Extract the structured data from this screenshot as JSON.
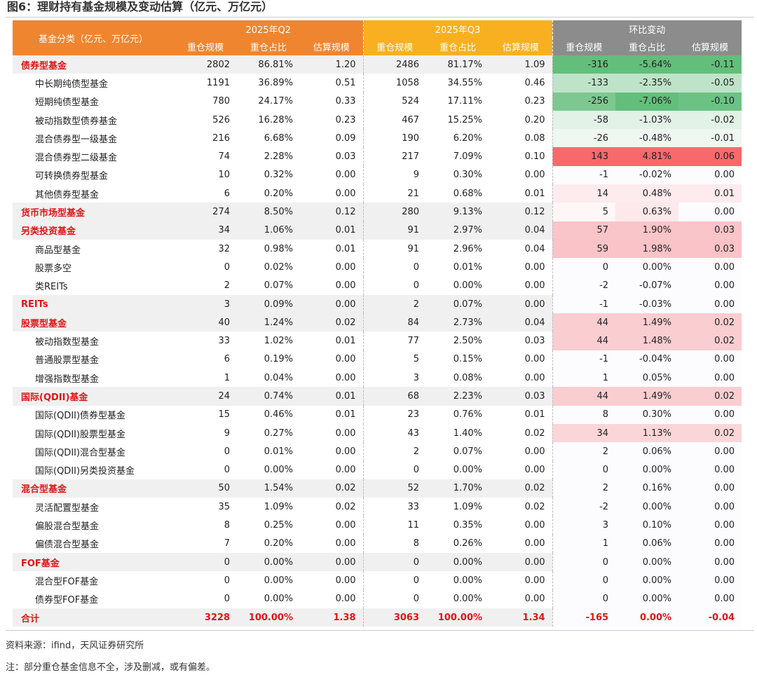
{
  "title": "图6：理财持有基金规模及变动估算（亿元、万亿元）",
  "header": {
    "category": "基金分类（亿元、万亿元）",
    "q2": "2025年Q2",
    "q3": "2025年Q3",
    "change": "环比变动",
    "cols": [
      "重仓规模",
      "重仓占比",
      "估算规模",
      "重仓规模",
      "重仓占比",
      "估算规模",
      "重仓规模",
      "重仓占比",
      "估算规模"
    ]
  },
  "rows": [
    {
      "name": "债券型基金",
      "type": "cat",
      "q2": [
        "2802",
        "86.81%",
        "1.20"
      ],
      "q3": [
        "2486",
        "81.17%",
        "1.09"
      ],
      "chg": [
        "-316",
        "-5.64%",
        "-0.11"
      ],
      "colors": [
        "#63be7b",
        "#63be7b",
        "#63be7b"
      ]
    },
    {
      "name": "中长期纯债型基金",
      "type": "sub",
      "q2": [
        "1191",
        "36.89%",
        "0.51"
      ],
      "q3": [
        "1058",
        "34.55%",
        "0.46"
      ],
      "chg": [
        "-133",
        "-2.35%",
        "-0.05"
      ],
      "colors": [
        "#bfe3c8",
        "#bfe3c8",
        "#bfe3c8"
      ]
    },
    {
      "name": "短期纯债型基金",
      "type": "sub",
      "q2": [
        "780",
        "24.17%",
        "0.33"
      ],
      "q3": [
        "524",
        "17.11%",
        "0.23"
      ],
      "chg": [
        "-256",
        "-7.06%",
        "-0.10"
      ],
      "colors": [
        "#7dc890",
        "#63be7b",
        "#6cc284"
      ]
    },
    {
      "name": "被动指数型债券基金",
      "type": "sub",
      "q2": [
        "526",
        "16.28%",
        "0.23"
      ],
      "q3": [
        "467",
        "15.25%",
        "0.20"
      ],
      "chg": [
        "-58",
        "-1.03%",
        "-0.02"
      ],
      "colors": [
        "#e2f2e6",
        "#e2f2e6",
        "#e2f2e6"
      ]
    },
    {
      "name": "混合债券型一级基金",
      "type": "sub",
      "q2": [
        "216",
        "6.68%",
        "0.09"
      ],
      "q3": [
        "190",
        "6.20%",
        "0.08"
      ],
      "chg": [
        "-26",
        "-0.48%",
        "-0.01"
      ],
      "colors": [
        "#eef7f0",
        "#eef7f0",
        "#eef7f0"
      ]
    },
    {
      "name": "混合债券型二级基金",
      "type": "sub",
      "q2": [
        "74",
        "2.28%",
        "0.03"
      ],
      "q3": [
        "217",
        "7.09%",
        "0.10"
      ],
      "chg": [
        "143",
        "4.81%",
        "0.06"
      ],
      "colors": [
        "#f8696b",
        "#f8696b",
        "#f8696b"
      ]
    },
    {
      "name": "可转换债券型基金",
      "type": "sub",
      "q2": [
        "10",
        "0.32%",
        "0.00"
      ],
      "q3": [
        "9",
        "0.30%",
        "0.00"
      ],
      "chg": [
        "-1",
        "-0.02%",
        "0.00"
      ],
      "colors": [
        "#fcfcff",
        "#fcfcff",
        "#fcfcff"
      ]
    },
    {
      "name": "其他债券型基金",
      "type": "sub",
      "q2": [
        "6",
        "0.20%",
        "0.00"
      ],
      "q3": [
        "21",
        "0.68%",
        "0.01"
      ],
      "chg": [
        "14",
        "0.48%",
        "0.01"
      ],
      "colors": [
        "#fdebed",
        "#fdebed",
        "#fdebed"
      ]
    },
    {
      "name": "货币市场型基金",
      "type": "cat",
      "q2": [
        "274",
        "8.50%",
        "0.12"
      ],
      "q3": [
        "280",
        "9.13%",
        "0.12"
      ],
      "chg": [
        "5",
        "0.63%",
        "0.00"
      ],
      "colors": [
        "#fef6f7",
        "#fde9eb",
        "#fcfcff"
      ]
    },
    {
      "name": "另类投资基金",
      "type": "cat",
      "q2": [
        "34",
        "1.06%",
        "0.01"
      ],
      "q3": [
        "91",
        "2.97%",
        "0.04"
      ],
      "chg": [
        "57",
        "1.90%",
        "0.03"
      ],
      "colors": [
        "#f9c5c9",
        "#f9c5c9",
        "#f9c5c9"
      ]
    },
    {
      "name": "商品型基金",
      "type": "sub",
      "q2": [
        "32",
        "0.98%",
        "0.01"
      ],
      "q3": [
        "91",
        "2.96%",
        "0.04"
      ],
      "chg": [
        "59",
        "1.98%",
        "0.03"
      ],
      "colors": [
        "#f9c3c7",
        "#f9c3c7",
        "#f9c3c7"
      ]
    },
    {
      "name": "股票多空",
      "type": "sub",
      "q2": [
        "0",
        "0.02%",
        "0.00"
      ],
      "q3": [
        "0",
        "0.01%",
        "0.00"
      ],
      "chg": [
        "0",
        "0.00%",
        "0.00"
      ],
      "colors": [
        "#fcfcff",
        "#fcfcff",
        "#fcfcff"
      ]
    },
    {
      "name": "类REITs",
      "type": "sub",
      "q2": [
        "2",
        "0.07%",
        "0.00"
      ],
      "q3": [
        "0",
        "0.00%",
        "0.00"
      ],
      "chg": [
        "-2",
        "-0.07%",
        "0.00"
      ],
      "colors": [
        "#fcfcff",
        "#fcfcff",
        "#fcfcff"
      ]
    },
    {
      "name": "REITs",
      "type": "cat",
      "q2": [
        "3",
        "0.09%",
        "0.00"
      ],
      "q3": [
        "2",
        "0.07%",
        "0.00"
      ],
      "chg": [
        "-1",
        "-0.03%",
        "0.00"
      ],
      "colors": [
        "#fcfcff",
        "#fcfcff",
        "#fcfcff"
      ]
    },
    {
      "name": "股票型基金",
      "type": "cat",
      "q2": [
        "40",
        "1.24%",
        "0.02"
      ],
      "q3": [
        "84",
        "2.73%",
        "0.04"
      ],
      "chg": [
        "44",
        "1.49%",
        "0.02"
      ],
      "colors": [
        "#facdd1",
        "#facdd1",
        "#facdd1"
      ]
    },
    {
      "name": "被动指数型基金",
      "type": "sub",
      "q2": [
        "33",
        "1.02%",
        "0.01"
      ],
      "q3": [
        "77",
        "2.50%",
        "0.03"
      ],
      "chg": [
        "44",
        "1.48%",
        "0.02"
      ],
      "colors": [
        "#facdd1",
        "#facdd1",
        "#facdd1"
      ]
    },
    {
      "name": "普通股票型基金",
      "type": "sub",
      "q2": [
        "6",
        "0.19%",
        "0.00"
      ],
      "q3": [
        "5",
        "0.15%",
        "0.00"
      ],
      "chg": [
        "-1",
        "-0.04%",
        "0.00"
      ],
      "colors": [
        "#fcfcff",
        "#fcfcff",
        "#fcfcff"
      ]
    },
    {
      "name": "增强指数型基金",
      "type": "sub",
      "q2": [
        "1",
        "0.04%",
        "0.00"
      ],
      "q3": [
        "3",
        "0.08%",
        "0.00"
      ],
      "chg": [
        "1",
        "0.05%",
        "0.00"
      ],
      "colors": [
        "#fcfcff",
        "#fcfcff",
        "#fcfcff"
      ]
    },
    {
      "name": "国际(QDII)基金",
      "type": "cat",
      "q2": [
        "24",
        "0.74%",
        "0.01"
      ],
      "q3": [
        "68",
        "2.23%",
        "0.03"
      ],
      "chg": [
        "44",
        "1.49%",
        "0.02"
      ],
      "colors": [
        "#facdd1",
        "#facdd1",
        "#facdd1"
      ]
    },
    {
      "name": "国际(QDII)债券型基金",
      "type": "sub",
      "q2": [
        "15",
        "0.46%",
        "0.01"
      ],
      "q3": [
        "23",
        "0.76%",
        "0.01"
      ],
      "chg": [
        "8",
        "0.30%",
        "0.00"
      ],
      "colors": [
        "#fcfcff",
        "#fcfcff",
        "#fcfcff"
      ]
    },
    {
      "name": "国际(QDII)股票型基金",
      "type": "sub",
      "q2": [
        "9",
        "0.27%",
        "0.00"
      ],
      "q3": [
        "43",
        "1.40%",
        "0.02"
      ],
      "chg": [
        "34",
        "1.13%",
        "0.02"
      ],
      "colors": [
        "#fbd6d9",
        "#fbd6d9",
        "#fbd6d9"
      ]
    },
    {
      "name": "国际(QDII)混合型基金",
      "type": "sub",
      "q2": [
        "0",
        "0.01%",
        "0.00"
      ],
      "q3": [
        "2",
        "0.07%",
        "0.00"
      ],
      "chg": [
        "2",
        "0.06%",
        "0.00"
      ],
      "colors": [
        "#fcfcff",
        "#fcfcff",
        "#fcfcff"
      ]
    },
    {
      "name": "国际(QDII)另类投资基金",
      "type": "sub",
      "q2": [
        "0",
        "0.00%",
        "0.00"
      ],
      "q3": [
        "0",
        "0.00%",
        "0.00"
      ],
      "chg": [
        "0",
        "0.00%",
        "0.00"
      ],
      "colors": [
        "#fcfcff",
        "#fcfcff",
        "#fcfcff"
      ]
    },
    {
      "name": "混合型基金",
      "type": "cat",
      "q2": [
        "50",
        "1.54%",
        "0.02"
      ],
      "q3": [
        "52",
        "1.70%",
        "0.02"
      ],
      "chg": [
        "2",
        "0.16%",
        "0.00"
      ],
      "colors": [
        "#fcfcff",
        "#fcfcff",
        "#fcfcff"
      ]
    },
    {
      "name": "灵活配置型基金",
      "type": "sub",
      "q2": [
        "35",
        "1.09%",
        "0.02"
      ],
      "q3": [
        "33",
        "1.09%",
        "0.02"
      ],
      "chg": [
        "-2",
        "0.00%",
        "0.00"
      ],
      "colors": [
        "#fcfcff",
        "#fcfcff",
        "#fcfcff"
      ]
    },
    {
      "name": "偏股混合型基金",
      "type": "sub",
      "q2": [
        "8",
        "0.25%",
        "0.00"
      ],
      "q3": [
        "11",
        "0.35%",
        "0.00"
      ],
      "chg": [
        "3",
        "0.10%",
        "0.00"
      ],
      "colors": [
        "#fcfcff",
        "#fcfcff",
        "#fcfcff"
      ]
    },
    {
      "name": "偏债混合型基金",
      "type": "sub",
      "q2": [
        "7",
        "0.20%",
        "0.00"
      ],
      "q3": [
        "8",
        "0.26%",
        "0.00"
      ],
      "chg": [
        "1",
        "0.06%",
        "0.00"
      ],
      "colors": [
        "#fcfcff",
        "#fcfcff",
        "#fcfcff"
      ]
    },
    {
      "name": "FOF基金",
      "type": "cat",
      "q2": [
        "0",
        "0.00%",
        "0.00"
      ],
      "q3": [
        "0",
        "0.00%",
        "0.00"
      ],
      "chg": [
        "0",
        "0.00%",
        "0.00"
      ],
      "colors": [
        "#fcfcff",
        "#fcfcff",
        "#fcfcff"
      ]
    },
    {
      "name": "混合型FOF基金",
      "type": "sub",
      "q2": [
        "0",
        "0.00%",
        "0.00"
      ],
      "q3": [
        "0",
        "0.00%",
        "0.00"
      ],
      "chg": [
        "0",
        "0.00%",
        "0.00"
      ],
      "colors": [
        "#fcfcff",
        "#fcfcff",
        "#fcfcff"
      ]
    },
    {
      "name": "债券型FOF基金",
      "type": "sub",
      "q2": [
        "0",
        "0.00%",
        "0.00"
      ],
      "q3": [
        "0",
        "0.00%",
        "0.00"
      ],
      "chg": [
        "0",
        "0.00%",
        "0.00"
      ],
      "colors": [
        "#fcfcff",
        "#fcfcff",
        "#fcfcff"
      ]
    },
    {
      "name": "合计",
      "type": "total",
      "q2": [
        "3228",
        "100.00%",
        "1.38"
      ],
      "q3": [
        "3063",
        "100.00%",
        "1.34"
      ],
      "chg": [
        "-165",
        "0.00%",
        "-0.04"
      ],
      "colors": [
        "#fcfcff",
        "#fcfcff",
        "#fcfcff"
      ]
    }
  ],
  "source": "资料来源：ifind，天风证券研究所",
  "note": "注：部分重仓基金信息不全，涉及删减，或有偏差。"
}
